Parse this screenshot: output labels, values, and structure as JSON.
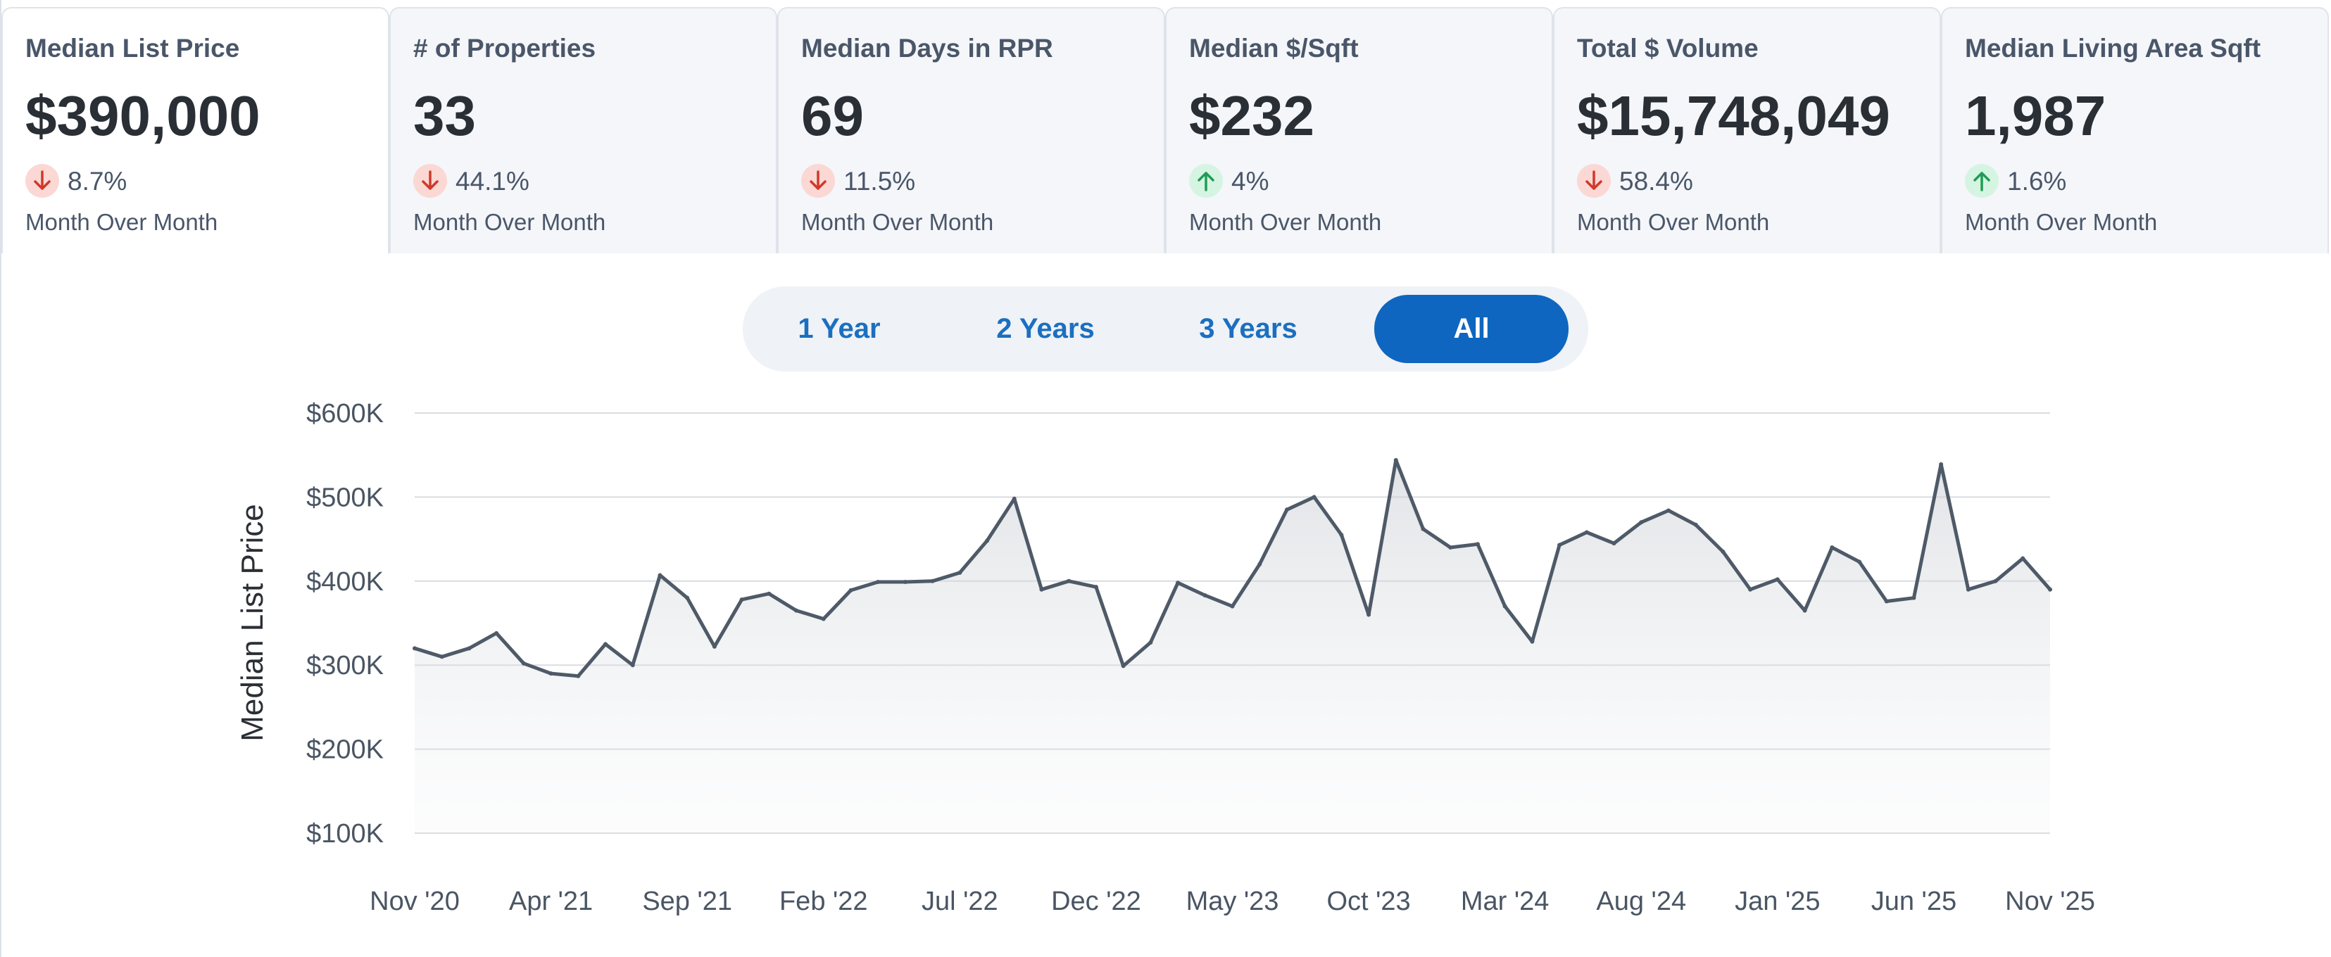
{
  "tiles": [
    {
      "title": "Median List Price",
      "value": "$390,000",
      "direction": "down",
      "change": "8.7%",
      "note": "Month Over Month"
    },
    {
      "title": "# of Properties",
      "value": "33",
      "direction": "down",
      "change": "44.1%",
      "note": "Month Over Month"
    },
    {
      "title": "Median Days in RPR",
      "value": "69",
      "direction": "down",
      "change": "11.5%",
      "note": "Month Over Month"
    },
    {
      "title": "Median $/Sqft",
      "value": "$232",
      "direction": "up",
      "change": "4%",
      "note": "Month Over Month"
    },
    {
      "title": "Total $ Volume",
      "value": "$15,748,049",
      "direction": "up_omitted",
      "change": "58.4%",
      "note": "Month Over Month"
    },
    {
      "title": "Median Living Area Sqft",
      "value": "1,987",
      "direction": "up",
      "change": "1.6%",
      "note": "Month Over Month"
    }
  ],
  "range": {
    "options": [
      "1 Year",
      "2 Years",
      "3 Years",
      "All"
    ],
    "selected": "All"
  },
  "colors": {
    "accent": "#0e66c0",
    "down": "#d0392b",
    "up": "#1f9d55",
    "line": "#4f5a68"
  },
  "chart_data": {
    "type": "area",
    "ylabel": "Median List Price",
    "ylim": [
      100000,
      600000
    ],
    "yticks": [
      100000,
      200000,
      300000,
      400000,
      500000,
      600000
    ],
    "ytick_labels": [
      "$100K",
      "$200K",
      "$300K",
      "$400K",
      "$500K",
      "$600K"
    ],
    "xtick_labels": [
      "Nov '20",
      "Apr '21",
      "Sep '21",
      "Feb '22",
      "Jul '22",
      "Dec '22",
      "May '23",
      "Oct '23",
      "Mar '24",
      "Aug '24",
      "Jan '25",
      "Jun '25",
      "Nov '25"
    ],
    "grid": true,
    "x": [
      "Nov '20",
      "Dec '20",
      "Jan '21",
      "Feb '21",
      "Mar '21",
      "Apr '21",
      "May '21",
      "Jun '21",
      "Jul '21",
      "Aug '21",
      "Sep '21",
      "Oct '21",
      "Nov '21",
      "Dec '21",
      "Jan '22",
      "Feb '22",
      "Mar '22",
      "Apr '22",
      "May '22",
      "Jun '22",
      "Jul '22",
      "Aug '22",
      "Sep '22",
      "Oct '22",
      "Nov '22",
      "Dec '22",
      "Jan '23",
      "Feb '23",
      "Mar '23",
      "Apr '23",
      "May '23",
      "Jun '23",
      "Jul '23",
      "Aug '23",
      "Sep '23",
      "Oct '23",
      "Nov '23",
      "Dec '23",
      "Jan '24",
      "Feb '24",
      "Mar '24",
      "Apr '24",
      "May '24",
      "Jun '24",
      "Jul '24",
      "Aug '24",
      "Sep '24",
      "Oct '24",
      "Nov '24",
      "Dec '24",
      "Jan '25",
      "Feb '25",
      "Mar '25",
      "Apr '25",
      "May '25",
      "Jun '25",
      "Jul '25",
      "Aug '25",
      "Sep '25",
      "Oct '25",
      "Nov '25"
    ],
    "values": [
      320000,
      310000,
      320000,
      338000,
      302000,
      290000,
      287000,
      325000,
      300000,
      407000,
      380000,
      322000,
      378000,
      385000,
      365000,
      355000,
      389000,
      399000,
      399000,
      400000,
      410000,
      448000,
      498000,
      390000,
      400000,
      393000,
      299000,
      327000,
      398000,
      383000,
      370000,
      420000,
      485000,
      500000,
      455000,
      360000,
      544000,
      462000,
      440000,
      444000,
      370000,
      328000,
      443000,
      458000,
      445000,
      470000,
      484000,
      467000,
      435000,
      390000,
      402000,
      365000,
      440000,
      423000,
      376000,
      380000,
      539000,
      390000,
      400000,
      427000,
      390000
    ]
  }
}
